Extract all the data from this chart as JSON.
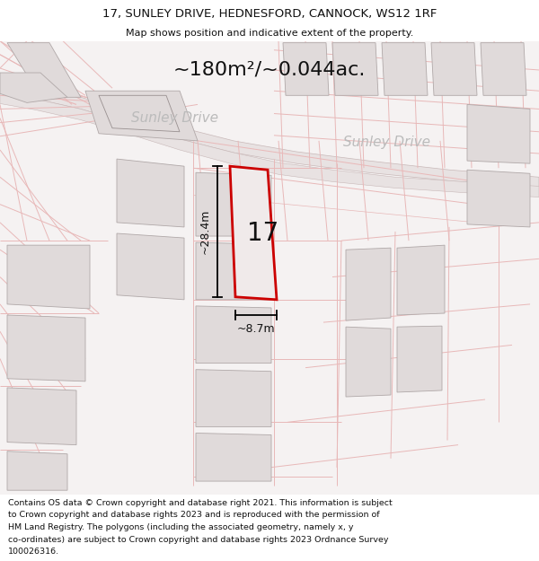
{
  "title_line1": "17, SUNLEY DRIVE, HEDNESFORD, CANNOCK, WS12 1RF",
  "title_line2": "Map shows position and indicative extent of the property.",
  "area_text": "~180m²/~0.044ac.",
  "street_name": "Sunley Drive",
  "plot_number": "17",
  "dim_height": "~28.4m",
  "dim_width": "~8.7m",
  "footer_lines": [
    "Contains OS data © Crown copyright and database right 2021. This information is subject",
    "to Crown copyright and database rights 2023 and is reproduced with the permission of",
    "HM Land Registry. The polygons (including the associated geometry, namely x, y",
    "co-ordinates) are subject to Crown copyright and database rights 2023 Ordnance Survey",
    "100026316."
  ],
  "map_bg": "#f5f2f2",
  "road_fill": "#e8e2e2",
  "road_edge": "#c8b8b8",
  "plot_fill": "#ede8e8",
  "plot_outline": "#cc0000",
  "building_fill": "#e0dada",
  "building_edge": "#b0a8a8",
  "cadastral_color": "#e8b8b8",
  "dim_color": "#000000",
  "text_dark": "#111111",
  "text_street": "#bbbbbb",
  "title_fs": 9.5,
  "subtitle_fs": 8.0,
  "area_fs": 16,
  "street_fs": 11,
  "plotnum_fs": 20,
  "dim_fs": 9,
  "footer_fs": 6.8
}
